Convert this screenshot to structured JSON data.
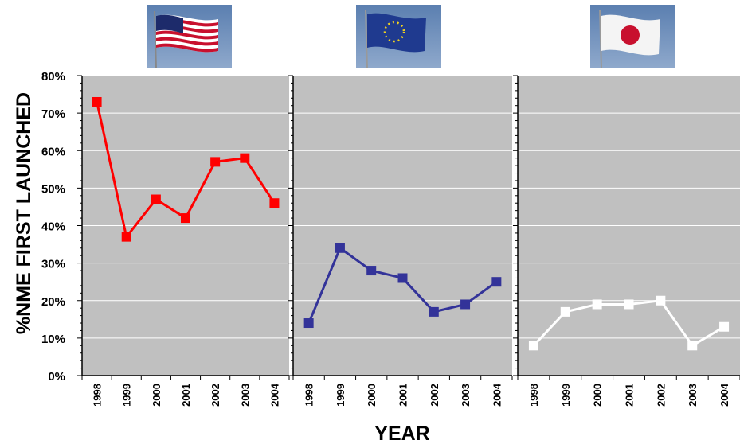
{
  "chart_data": [
    {
      "type": "line",
      "flag": "us-flag",
      "categories": [
        "1998",
        "1999",
        "2000",
        "2001",
        "2002",
        "2003",
        "2004"
      ],
      "values": [
        73,
        37,
        47,
        42,
        57,
        58,
        46
      ],
      "color": "#ff0000"
    },
    {
      "type": "line",
      "flag": "eu-flag",
      "categories": [
        "1998",
        "1999",
        "2000",
        "2001",
        "2002",
        "2003",
        "2004"
      ],
      "values": [
        14,
        34,
        28,
        26,
        17,
        19,
        25
      ],
      "color": "#333399"
    },
    {
      "type": "line",
      "flag": "japan-flag",
      "categories": [
        "1998",
        "1999",
        "2000",
        "2001",
        "2002",
        "2003",
        "2004"
      ],
      "values": [
        8,
        17,
        19,
        19,
        20,
        8,
        13
      ],
      "color": "#ffffff"
    }
  ],
  "axes": {
    "ylabel": "%NME FIRST LAUNCHED",
    "xlabel": "YEAR",
    "yticks": [
      "0%",
      "10%",
      "20%",
      "30%",
      "40%",
      "50%",
      "60%",
      "70%",
      "80%"
    ],
    "ylim": [
      0,
      80
    ],
    "plot_background": "#c0c0c0",
    "grid": true
  }
}
